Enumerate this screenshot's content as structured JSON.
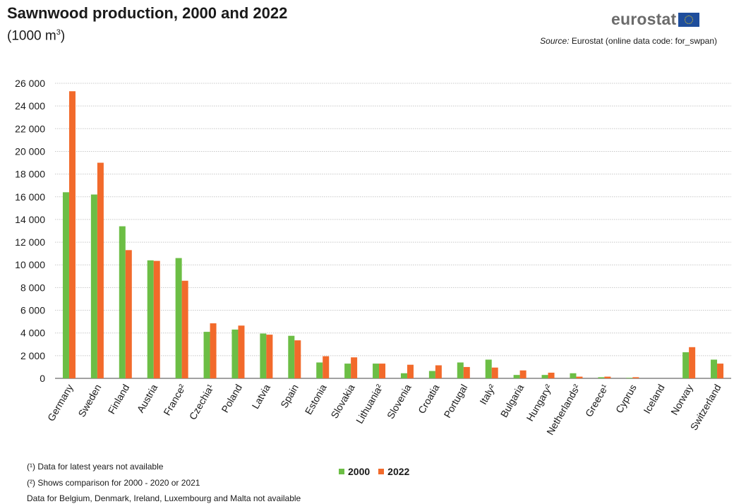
{
  "header": {
    "title": "Sawnwood production, 2000 and 2022",
    "subtitle": "(1000 m",
    "subtitle_sup": "3",
    "subtitle_end": ")",
    "logo": "eurostat",
    "source_label": "Source:",
    "source_text": "Eurostat (online data code: for_swpan)"
  },
  "footnotes": {
    "note1": "(¹) Data for latest  years not available",
    "note2": "(²) Shows comparison for 2000 - 2020 or 2021",
    "note3": "Data for Belgium,  Denmark, Ireland, Luxembourg  and Malta  not available"
  },
  "chart_data": {
    "type": "bar",
    "categories": [
      "Germany",
      "Sweden",
      "Finland",
      "Austria",
      "France²",
      "Czechia¹",
      "Poland",
      "Latvia",
      "Spain",
      "Estonia",
      "Slovakia",
      "Lithuania²",
      "Slovenia",
      "Croatia",
      "Portugal",
      "Italy²",
      "Bulgaria",
      "Hungary²",
      "Netherlands²",
      "Greece¹",
      "Cyprus",
      "Iceland",
      "Norway",
      "Switzerland"
    ],
    "series": [
      {
        "name": "2000",
        "color": "#6cbe45",
        "values": [
          16400,
          16200,
          13400,
          10400,
          10600,
          4100,
          4300,
          3950,
          3750,
          1400,
          1300,
          1300,
          450,
          650,
          1400,
          1650,
          300,
          300,
          450,
          100,
          50,
          0,
          2300,
          1650
        ]
      },
      {
        "name": "2022",
        "color": "#f26a2b",
        "values": [
          25300,
          19000,
          11300,
          10350,
          8600,
          4850,
          4650,
          3850,
          3350,
          1950,
          1850,
          1300,
          1200,
          1150,
          1000,
          950,
          700,
          500,
          150,
          150,
          100,
          0,
          2750,
          1300
        ]
      }
    ],
    "yticks": [
      "26 000",
      "24 000",
      "22 000",
      "20 000",
      "18 000",
      "16 000",
      "14 000",
      "12 000",
      "10 000",
      "8 000",
      "6 000",
      "4 000",
      "2 000",
      "0"
    ],
    "ylim": [
      0,
      26000
    ],
    "grid": true,
    "legend_position": "bottom-center"
  }
}
